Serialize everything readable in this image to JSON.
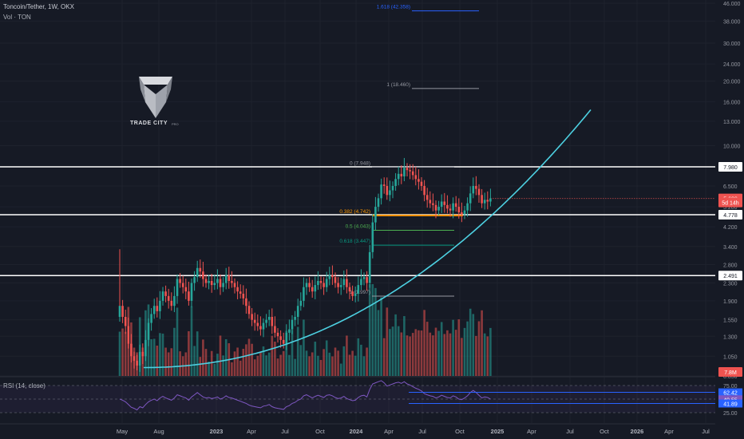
{
  "header": {
    "symbol": "Toncoin/Tether, 1W, OKX",
    "volume_label": "Vol · TON"
  },
  "logo": {
    "name": "TRADE CITY",
    "sub": "PRO"
  },
  "rsi": {
    "label": "RSI (14, close)",
    "axis_ticks": [
      "75.00",
      "25.00"
    ],
    "levels": [
      {
        "label": "62.42",
        "color": "#2962ff"
      },
      {
        "label": "49.55",
        "color": "#7e57c2"
      },
      {
        "label": "41.89",
        "color": "#2962ff"
      }
    ]
  },
  "colors": {
    "up": "#26a69a",
    "down": "#ef5350",
    "curve": "#4dd0e1",
    "bg": "#161a25"
  },
  "chart_data": {
    "type": "candlestick",
    "scale": "log",
    "ylim": [
      0.85,
      46.0
    ],
    "y_ticks": [
      "46.000",
      "38.000",
      "30.000",
      "24.000",
      "20.000",
      "16.000",
      "13.000",
      "10.000",
      "6.500",
      "5.200",
      "4.200",
      "3.400",
      "2.800",
      "2.300",
      "1.900",
      "1.550",
      "1.300",
      "1.050",
      "0.850"
    ],
    "x_ticks": [
      "May",
      "Aug",
      "2023",
      "Apr",
      "Jul",
      "Oct",
      "2024",
      "Apr",
      "Jul",
      "Oct",
      "2025",
      "Apr",
      "Jul",
      "Oct",
      "2026",
      "Apr",
      "Jul"
    ],
    "price_labels": [
      {
        "label": "7.980",
        "value": 7.98,
        "style": "white"
      },
      {
        "label": "5.688",
        "value": 5.688,
        "style": "last"
      },
      {
        "label": "5d 14h",
        "value": 5.45,
        "style": "last"
      },
      {
        "label": "4.778",
        "value": 4.778,
        "style": "white"
      },
      {
        "label": "2.491",
        "value": 2.491,
        "style": "white"
      }
    ],
    "horizontal_levels": [
      7.98,
      4.778,
      2.491
    ],
    "fib_levels": [
      {
        "label": "1.618 (42.358)",
        "value": 42.358,
        "color": "#2962ff"
      },
      {
        "label": "1 (18.460)",
        "value": 18.46,
        "color": "#9598a1"
      },
      {
        "label": "0 (7.948)",
        "value": 7.948,
        "color": "#9598a1"
      },
      {
        "label": "0.382 (4.742)",
        "value": 4.742,
        "color": "#ff9800"
      },
      {
        "label": "0.5 (4.043)",
        "value": 4.043,
        "color": "#4caf50"
      },
      {
        "label": "0.618 (3.447)",
        "value": 3.447,
        "color": "#089981"
      },
      {
        "label": "1 (1.997)",
        "value": 1.997,
        "color": "#9598a1"
      }
    ],
    "volume_label": "7.8M",
    "closes": [
      1.8,
      1.6,
      1.45,
      1.2,
      1.05,
      1.0,
      0.95,
      1.1,
      1.05,
      1.25,
      1.5,
      1.65,
      1.8,
      1.7,
      1.9,
      2.1,
      2.0,
      1.9,
      1.8,
      2.0,
      2.4,
      2.3,
      2.2,
      2.1,
      1.9,
      2.3,
      2.45,
      2.7,
      2.6,
      2.4,
      2.3,
      2.35,
      2.25,
      2.3,
      2.4,
      2.2,
      2.3,
      2.5,
      2.35,
      2.3,
      2.2,
      2.1,
      2.05,
      1.95,
      1.8,
      1.65,
      1.55,
      1.5,
      1.45,
      1.4,
      1.5,
      1.55,
      1.6,
      1.45,
      1.35,
      1.3,
      1.25,
      1.2,
      1.35,
      1.4,
      1.55,
      1.6,
      1.8,
      1.9,
      2.2,
      2.3,
      2.2,
      2.1,
      2.25,
      2.35,
      2.3,
      2.2,
      2.4,
      2.5,
      2.45,
      2.3,
      2.2,
      2.25,
      2.4,
      2.2,
      2.1,
      2.0,
      2.05,
      2.25,
      2.4,
      2.45,
      2.3,
      3.2,
      4.4,
      5.2,
      5.7,
      6.6,
      6.5,
      5.9,
      6.2,
      6.5,
      7.0,
      7.4,
      7.2,
      7.9,
      7.7,
      7.6,
      7.3,
      7.0,
      6.8,
      6.5,
      5.9,
      5.6,
      5.4,
      5.3,
      5.0,
      5.2,
      5.5,
      5.3,
      5.1,
      5.0,
      5.4,
      5.2,
      4.9,
      4.8,
      5.0,
      5.4,
      6.0,
      6.5,
      6.3,
      5.9,
      5.4,
      5.6,
      5.5,
      5.688
    ],
    "rsi_values": [
      50,
      48,
      45,
      40,
      35,
      33,
      30,
      36,
      34,
      40,
      45,
      48,
      50,
      47,
      52,
      55,
      52,
      50,
      48,
      52,
      58,
      56,
      54,
      52,
      48,
      54,
      58,
      62,
      58,
      54,
      52,
      53,
      51,
      52,
      54,
      50,
      52,
      56,
      53,
      52,
      50,
      48,
      46,
      44,
      42,
      39,
      37,
      36,
      35,
      34,
      37,
      38,
      40,
      36,
      34,
      33,
      32,
      31,
      36,
      38,
      42,
      44,
      48,
      50,
      56,
      58,
      55,
      52,
      55,
      57,
      55,
      53,
      57,
      58,
      56,
      53,
      51,
      52,
      55,
      51,
      49,
      47,
      48,
      53,
      56,
      57,
      54,
      68,
      78,
      80,
      82,
      84,
      80,
      74,
      76,
      78,
      80,
      81,
      79,
      82,
      78,
      76,
      73,
      70,
      68,
      65,
      60,
      58,
      56,
      55,
      52,
      54,
      57,
      55,
      53,
      52,
      56,
      54,
      50,
      49,
      52,
      56,
      62,
      66,
      62,
      57,
      52,
      54,
      53,
      50
    ]
  }
}
